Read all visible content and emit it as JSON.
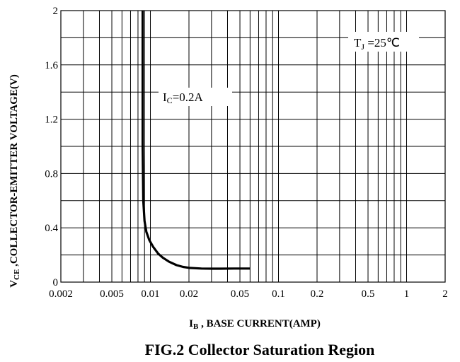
{
  "chart_data": {
    "type": "line",
    "title": "FIG.2 Collector Saturation Region",
    "xlabel": {
      "main": "I",
      "sub": "B",
      "rest": " , BASE CURRENT(AMP)"
    },
    "ylabel": {
      "main": "V",
      "sub": "CE",
      "rest": " ,COLLECTOR-EMITTER VOLTAGE(V)"
    },
    "x_scale": "log",
    "xlim": [
      0.002,
      2
    ],
    "ylim": [
      0,
      2
    ],
    "grid": true,
    "x_ticks": [
      0.002,
      0.005,
      0.01,
      0.02,
      0.05,
      0.1,
      0.2,
      0.5,
      1,
      2
    ],
    "x_tick_labels": [
      "0.002",
      "0.005",
      "0.01",
      "0.02",
      "0.05",
      "0.1",
      "0.2",
      "0.5",
      "1",
      "2"
    ],
    "y_ticks": [
      0,
      0.4,
      0.8,
      1.2,
      1.6,
      2
    ],
    "y_tick_labels": [
      "0",
      "0.4",
      "0.8",
      "1.2",
      "1.6",
      "2"
    ],
    "annotations": {
      "tj": {
        "main": "T",
        "sub": "J",
        "rest": " =25℃"
      },
      "ic": {
        "main": "I",
        "sub": "C",
        "rest": "=0.2A"
      }
    },
    "series": [
      {
        "x": [
          0.0087,
          0.0087,
          0.0088,
          0.009,
          0.0093,
          0.0098,
          0.0105,
          0.0115,
          0.0125,
          0.014,
          0.016,
          0.018,
          0.02,
          0.025,
          0.03,
          0.035,
          0.045,
          0.06
        ],
        "y": [
          2.0,
          1.0,
          0.6,
          0.45,
          0.37,
          0.31,
          0.26,
          0.21,
          0.18,
          0.15,
          0.125,
          0.112,
          0.105,
          0.1,
          0.099,
          0.099,
          0.1,
          0.1
        ]
      }
    ]
  }
}
